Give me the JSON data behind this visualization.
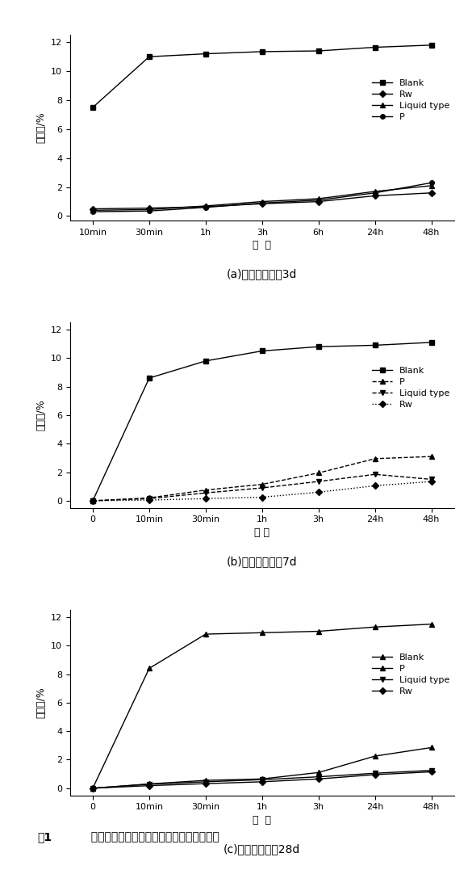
{
  "subplot_a": {
    "title": "(a)砂浆试件养护3d",
    "xtick_labels": [
      "10min",
      "30min",
      "1h",
      "3h",
      "6h",
      "24h",
      "48h"
    ],
    "xlabel": "时  间",
    "ylabel": "吸水率/%",
    "ylim": [
      -0.3,
      12.5
    ],
    "yticks": [
      0,
      2,
      4,
      6,
      8,
      10,
      12
    ],
    "series": {
      "Blank": [
        7.5,
        11.0,
        11.2,
        11.35,
        11.4,
        11.65,
        11.8
      ],
      "Rw": [
        0.5,
        0.55,
        0.65,
        0.85,
        1.0,
        1.4,
        1.6
      ],
      "Liquid type": [
        0.4,
        0.45,
        0.7,
        1.0,
        1.2,
        1.7,
        2.1
      ],
      "P": [
        0.3,
        0.35,
        0.6,
        0.9,
        1.1,
        1.6,
        2.3
      ]
    },
    "legend_order": [
      "Blank",
      "Rw",
      "Liquid type",
      "P"
    ],
    "line_styles": {
      "Blank": {
        "ls": "-",
        "marker": "s"
      },
      "Rw": {
        "ls": "-",
        "marker": "D"
      },
      "Liquid type": {
        "ls": "-",
        "marker": "^"
      },
      "P": {
        "ls": "-",
        "marker": "o"
      }
    }
  },
  "subplot_b": {
    "title": "(b)砂浆试件养护7d",
    "xtick_labels": [
      "0",
      "10min",
      "30min",
      "1h",
      "3h",
      "24h",
      "48h"
    ],
    "xlabel": "时 间",
    "ylabel": "吸水率/%",
    "ylim": [
      -0.5,
      12.5
    ],
    "yticks": [
      0,
      2,
      4,
      6,
      8,
      10,
      12
    ],
    "series": {
      "Blank": [
        0.0,
        8.6,
        9.8,
        10.5,
        10.8,
        10.9,
        11.1
      ],
      "P": [
        0.0,
        0.2,
        0.75,
        1.15,
        1.95,
        2.95,
        3.1
      ],
      "Liquid type": [
        0.0,
        0.15,
        0.55,
        0.9,
        1.35,
        1.85,
        1.5
      ],
      "Rw": [
        0.0,
        0.05,
        0.15,
        0.25,
        0.6,
        1.05,
        1.35
      ]
    },
    "legend_order": [
      "Blank",
      "P",
      "Liquid type",
      "Rw"
    ],
    "line_styles": {
      "Blank": {
        "ls": "-",
        "marker": "s"
      },
      "P": {
        "ls": "--",
        "marker": "^"
      },
      "Liquid type": {
        "ls": "--",
        "marker": "v"
      },
      "Rw": {
        "ls": ":",
        "marker": "D"
      }
    }
  },
  "subplot_c": {
    "title": "(c)砂浆试件养护28d",
    "xtick_labels": [
      "0",
      "10min",
      "30min",
      "1h",
      "3h",
      "24h",
      "48h"
    ],
    "xlabel": "时  间",
    "ylabel": "吸水率/%",
    "ylim": [
      -0.5,
      12.5
    ],
    "yticks": [
      0,
      2,
      4,
      6,
      8,
      10,
      12
    ],
    "series": {
      "Blank": [
        0.0,
        8.4,
        10.8,
        10.9,
        11.0,
        11.3,
        11.5
      ],
      "P": [
        0.0,
        0.3,
        0.55,
        0.65,
        1.1,
        2.25,
        2.85
      ],
      "Liquid type": [
        0.0,
        0.28,
        0.45,
        0.6,
        0.8,
        1.05,
        1.25
      ],
      "Rw": [
        0.0,
        0.18,
        0.32,
        0.45,
        0.65,
        0.95,
        1.15
      ]
    },
    "legend_order": [
      "Blank",
      "P",
      "Liquid type",
      "Rw"
    ],
    "line_styles": {
      "Blank": {
        "ls": "-",
        "marker": "^"
      },
      "P": {
        "ls": "-",
        "marker": "^"
      },
      "Liquid type": {
        "ls": "-",
        "marker": "v"
      },
      "Rw": {
        "ls": "-",
        "marker": "D"
      }
    }
  },
  "figure_label": "图1",
  "figure_caption": "  掺不同防水剂的砂浆吸水率随时间变化关系",
  "color": "black",
  "background": "white"
}
